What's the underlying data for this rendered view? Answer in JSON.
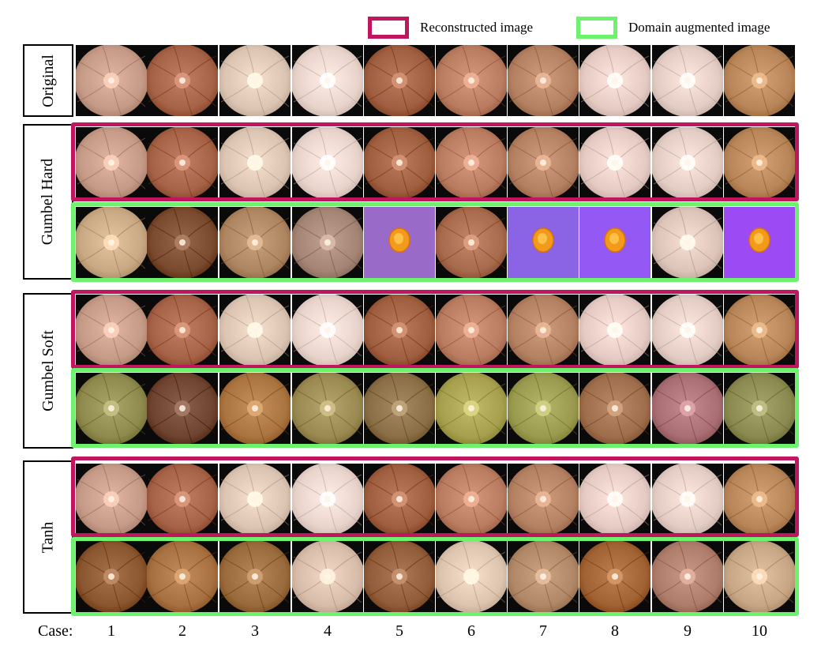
{
  "legend": {
    "reconstructed": {
      "label": "Reconstructed image",
      "color": "#c0165e"
    },
    "augmented": {
      "label": "Domain augmented image",
      "color": "#6cf26c"
    }
  },
  "row_labels": {
    "original": "Original",
    "gumbel_hard": "Gumbel Hard",
    "gumbel_soft": "Gumbel Soft",
    "tanh": "Tanh"
  },
  "case_label": "Case:",
  "cases": [
    "1",
    "2",
    "3",
    "4",
    "5",
    "6",
    "7",
    "8",
    "9",
    "10"
  ],
  "rows": [
    {
      "id": "original",
      "kind": "original"
    },
    {
      "id": "gumbel-hard-reconstructed",
      "kind": "reconstructed"
    },
    {
      "id": "gumbel-hard-augmented",
      "kind": "augmented"
    },
    {
      "id": "gumbel-soft-reconstructed",
      "kind": "reconstructed"
    },
    {
      "id": "gumbel-soft-augmented",
      "kind": "augmented"
    },
    {
      "id": "tanh-reconstructed",
      "kind": "reconstructed"
    },
    {
      "id": "tanh-augmented",
      "kind": "augmented"
    }
  ],
  "base_colors": [
    "#c59a86",
    "#a66246",
    "#dcc4b2",
    "#e8d3cb",
    "#9e5e3f",
    "#b97c60",
    "#b48062",
    "#e4cac2",
    "#e2ccc4",
    "#b78557"
  ],
  "tile_colors": {
    "gumbel-hard-augmented": [
      "#c9a884",
      "#7a4a2e",
      "#ad8560",
      "#a48474",
      "#9a6ac8",
      "#a86a4c",
      "#8a64e4",
      "#9458f4",
      "#dcc4b8",
      "#9c4af4"
    ],
    "gumbel-soft-augmented": [
      "#8e8a4e",
      "#6e4430",
      "#aa7440",
      "#9a8a52",
      "#8a6e46",
      "#a6a04e",
      "#9a9a4e",
      "#9e6e4c",
      "#a86e74",
      "#8a8a50"
    ],
    "tanh-augmented": [
      "#8a5630",
      "#a67040",
      "#986a3c",
      "#d8bcaa",
      "#905c3a",
      "#ddc4ae",
      "#b08868",
      "#a06232",
      "#ae7c6a",
      "#c6a684"
    ]
  }
}
